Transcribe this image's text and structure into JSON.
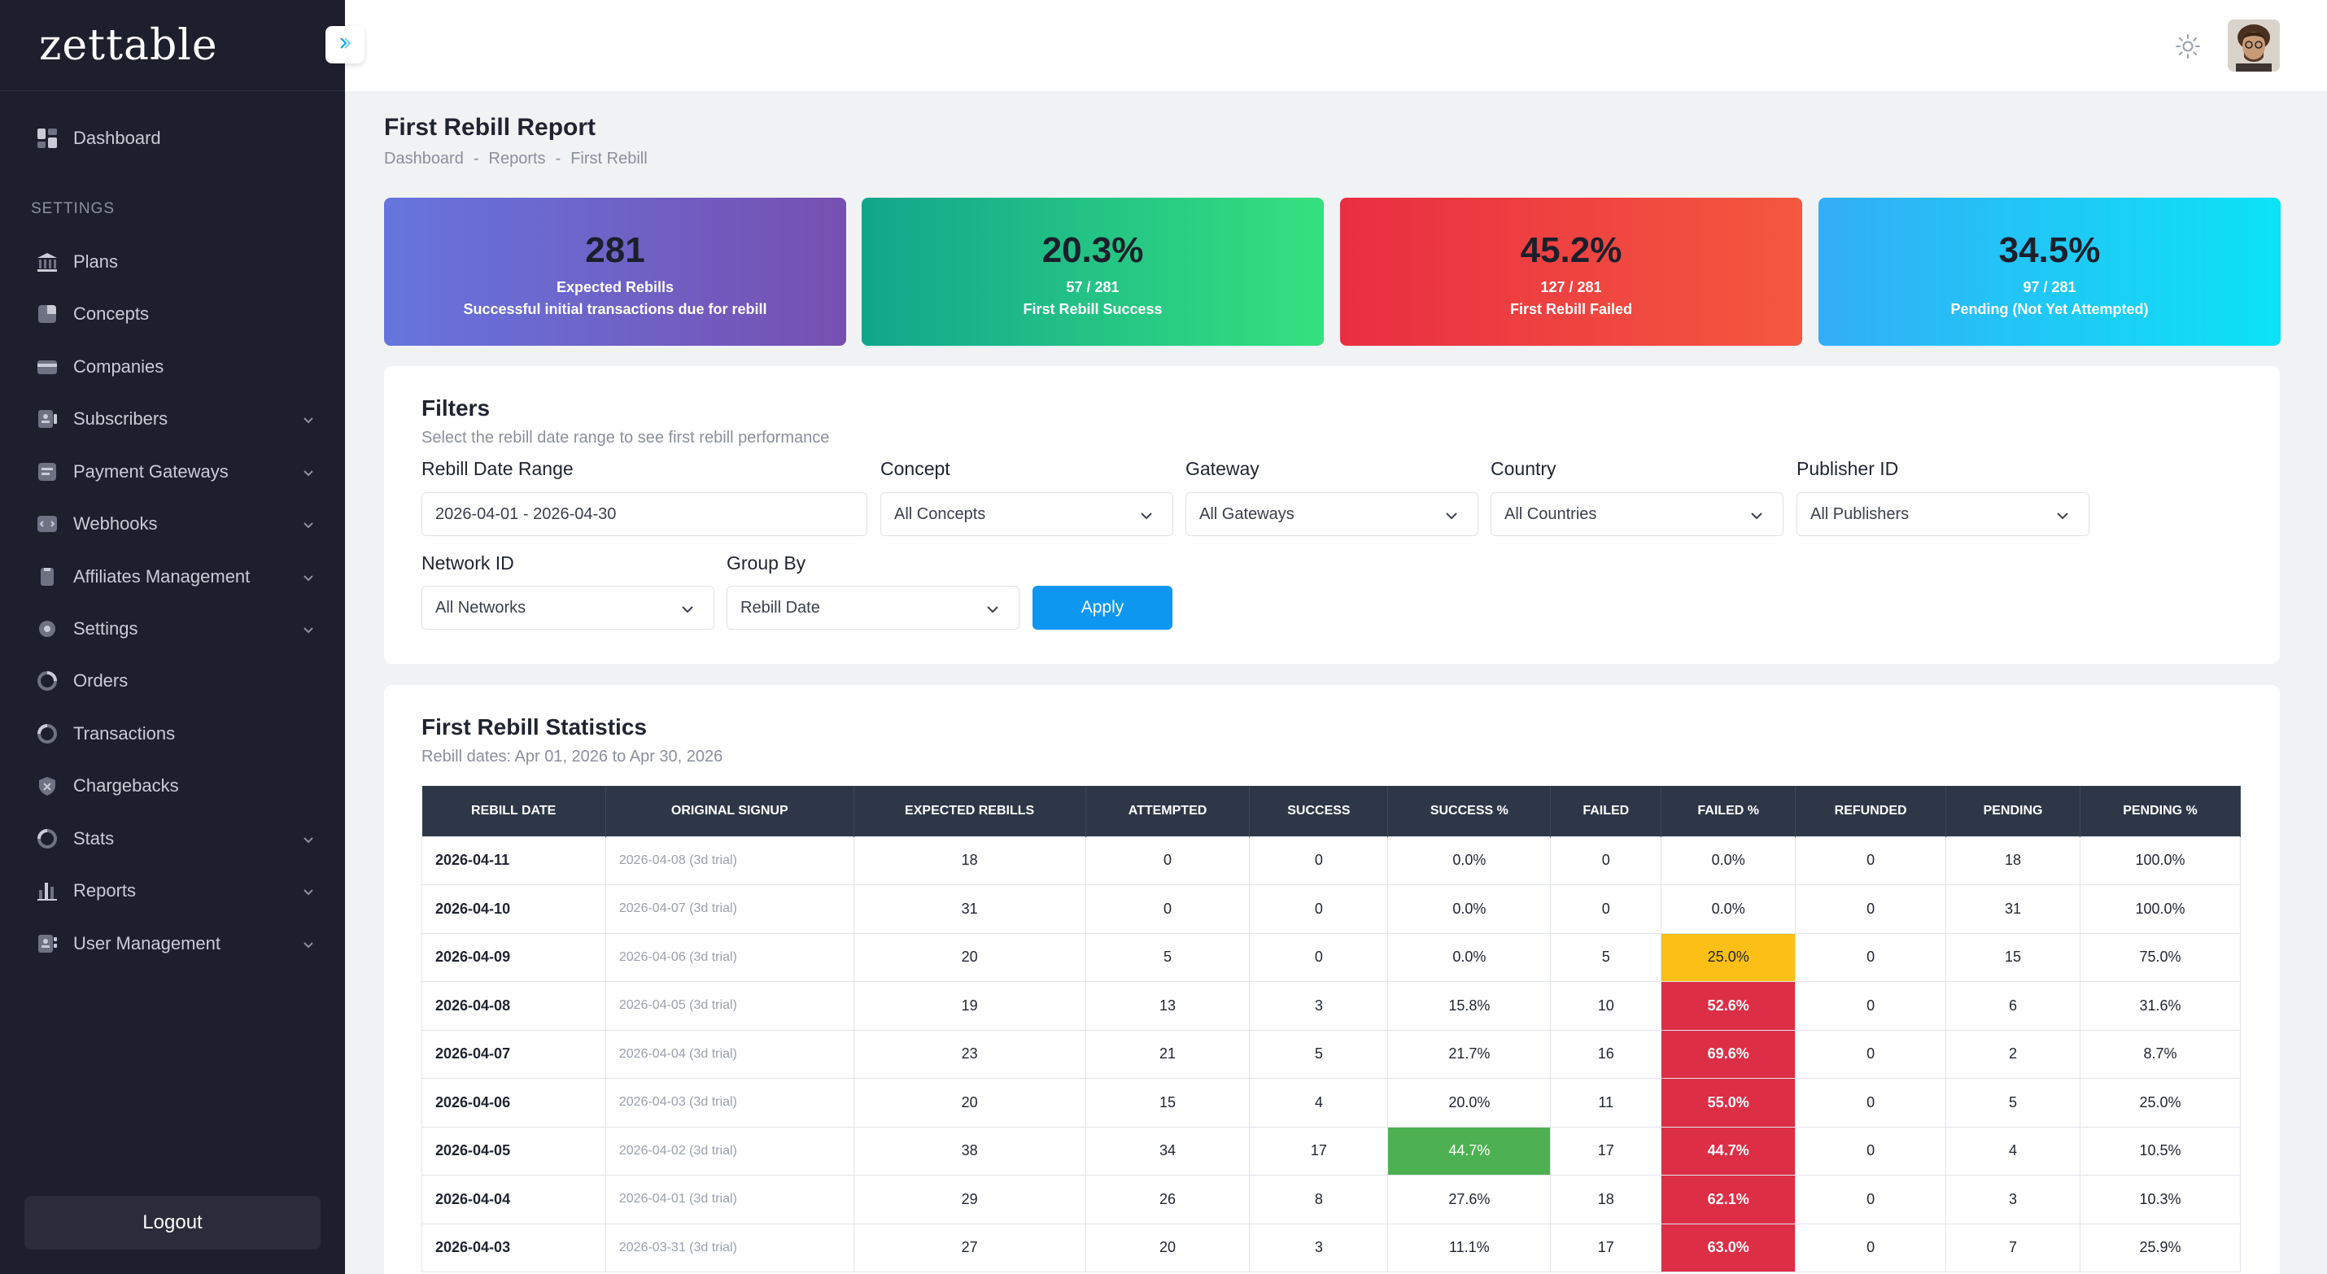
{
  "app": {
    "logo": "zettable"
  },
  "sidebar": {
    "section_label": "SETTINGS",
    "logout_label": "Logout",
    "items": [
      {
        "label": "Dashboard",
        "icon": "dashboard-icon",
        "expandable": false
      },
      {
        "label": "Plans",
        "icon": "bank-icon",
        "expandable": false
      },
      {
        "label": "Concepts",
        "icon": "pie-icon",
        "expandable": false
      },
      {
        "label": "Companies",
        "icon": "card-icon",
        "expandable": false
      },
      {
        "label": "Subscribers",
        "icon": "subscribers-icon",
        "expandable": true
      },
      {
        "label": "Payment Gateways",
        "icon": "gateway-icon",
        "expandable": true
      },
      {
        "label": "Webhooks",
        "icon": "webhook-icon",
        "expandable": true
      },
      {
        "label": "Affiliates Management",
        "icon": "affiliate-icon",
        "expandable": true
      },
      {
        "label": "Settings",
        "icon": "gear-icon",
        "expandable": true
      },
      {
        "label": "Orders",
        "icon": "orders-icon",
        "expandable": false
      },
      {
        "label": "Transactions",
        "icon": "transactions-icon",
        "expandable": false
      },
      {
        "label": "Chargebacks",
        "icon": "chargeback-icon",
        "expandable": false
      },
      {
        "label": "Stats",
        "icon": "stats-icon",
        "expandable": true
      },
      {
        "label": "Reports",
        "icon": "reports-icon",
        "expandable": true
      },
      {
        "label": "User Management",
        "icon": "user-management-icon",
        "expandable": true
      }
    ]
  },
  "header": {
    "title": "First Rebill Report",
    "breadcrumb": [
      "Dashboard",
      "-",
      "Reports",
      "-",
      "First Rebill"
    ]
  },
  "cards": [
    {
      "value": "281",
      "line1": "Expected Rebills",
      "line2": "Successful initial transactions due for rebill"
    },
    {
      "value": "20.3%",
      "line1": "57 / 281",
      "line2": "First Rebill Success"
    },
    {
      "value": "45.2%",
      "line1": "127 / 281",
      "line2": "First Rebill Failed"
    },
    {
      "value": "34.5%",
      "line1": "97 / 281",
      "line2": "Pending (Not Yet Attempted)"
    }
  ],
  "filters": {
    "title": "Filters",
    "subtitle": "Select the rebill date range to see first rebill performance",
    "date_range": {
      "label": "Rebill Date Range",
      "value": "2026-04-01 - 2026-04-30"
    },
    "concept": {
      "label": "Concept",
      "value": "All Concepts"
    },
    "gateway": {
      "label": "Gateway",
      "value": "All Gateways"
    },
    "country": {
      "label": "Country",
      "value": "All Countries"
    },
    "publisher": {
      "label": "Publisher ID",
      "value": "All Publishers"
    },
    "network": {
      "label": "Network ID",
      "value": "All Networks"
    },
    "group_by": {
      "label": "Group By",
      "value": "Rebill Date"
    },
    "apply_label": "Apply"
  },
  "statistics": {
    "title": "First Rebill Statistics",
    "subtitle": "Rebill dates: Apr 01, 2026 to Apr 30, 2026",
    "columns": [
      "REBILL DATE",
      "ORIGINAL SIGNUP",
      "EXPECTED REBILLS",
      "ATTEMPTED",
      "SUCCESS",
      "SUCCESS %",
      "FAILED",
      "FAILED %",
      "REFUNDED",
      "PENDING",
      "PENDING %"
    ],
    "rows": [
      {
        "date": "2026-04-11",
        "signup": "2026-04-08 (3d trial)",
        "expected": "18",
        "attempted": "0",
        "success": "0",
        "success_pct": "0.0%",
        "failed": "0",
        "failed_pct": "0.0%",
        "refunded": "0",
        "pending": "18",
        "pending_pct": "100.0%",
        "success_hl": "",
        "failed_hl": ""
      },
      {
        "date": "2026-04-10",
        "signup": "2026-04-07 (3d trial)",
        "expected": "31",
        "attempted": "0",
        "success": "0",
        "success_pct": "0.0%",
        "failed": "0",
        "failed_pct": "0.0%",
        "refunded": "0",
        "pending": "31",
        "pending_pct": "100.0%",
        "success_hl": "",
        "failed_hl": ""
      },
      {
        "date": "2026-04-09",
        "signup": "2026-04-06 (3d trial)",
        "expected": "20",
        "attempted": "5",
        "success": "0",
        "success_pct": "0.0%",
        "failed": "5",
        "failed_pct": "25.0%",
        "refunded": "0",
        "pending": "15",
        "pending_pct": "75.0%",
        "success_hl": "",
        "failed_hl": "yellow"
      },
      {
        "date": "2026-04-08",
        "signup": "2026-04-05 (3d trial)",
        "expected": "19",
        "attempted": "13",
        "success": "3",
        "success_pct": "15.8%",
        "failed": "10",
        "failed_pct": "52.6%",
        "refunded": "0",
        "pending": "6",
        "pending_pct": "31.6%",
        "success_hl": "",
        "failed_hl": "red"
      },
      {
        "date": "2026-04-07",
        "signup": "2026-04-04 (3d trial)",
        "expected": "23",
        "attempted": "21",
        "success": "5",
        "success_pct": "21.7%",
        "failed": "16",
        "failed_pct": "69.6%",
        "refunded": "0",
        "pending": "2",
        "pending_pct": "8.7%",
        "success_hl": "",
        "failed_hl": "red"
      },
      {
        "date": "2026-04-06",
        "signup": "2026-04-03 (3d trial)",
        "expected": "20",
        "attempted": "15",
        "success": "4",
        "success_pct": "20.0%",
        "failed": "11",
        "failed_pct": "55.0%",
        "refunded": "0",
        "pending": "5",
        "pending_pct": "25.0%",
        "success_hl": "",
        "failed_hl": "red"
      },
      {
        "date": "2026-04-05",
        "signup": "2026-04-02 (3d trial)",
        "expected": "38",
        "attempted": "34",
        "success": "17",
        "success_pct": "44.7%",
        "failed": "17",
        "failed_pct": "44.7%",
        "refunded": "0",
        "pending": "4",
        "pending_pct": "10.5%",
        "success_hl": "green",
        "failed_hl": "red"
      },
      {
        "date": "2026-04-04",
        "signup": "2026-04-01 (3d trial)",
        "expected": "29",
        "attempted": "26",
        "success": "8",
        "success_pct": "27.6%",
        "failed": "18",
        "failed_pct": "62.1%",
        "refunded": "0",
        "pending": "3",
        "pending_pct": "10.3%",
        "success_hl": "",
        "failed_hl": "red"
      },
      {
        "date": "2026-04-03",
        "signup": "2026-03-31 (3d trial)",
        "expected": "27",
        "attempted": "20",
        "success": "3",
        "success_pct": "11.1%",
        "failed": "17",
        "failed_pct": "63.0%",
        "refunded": "0",
        "pending": "7",
        "pending_pct": "25.9%",
        "success_hl": "",
        "failed_hl": "red"
      }
    ]
  }
}
